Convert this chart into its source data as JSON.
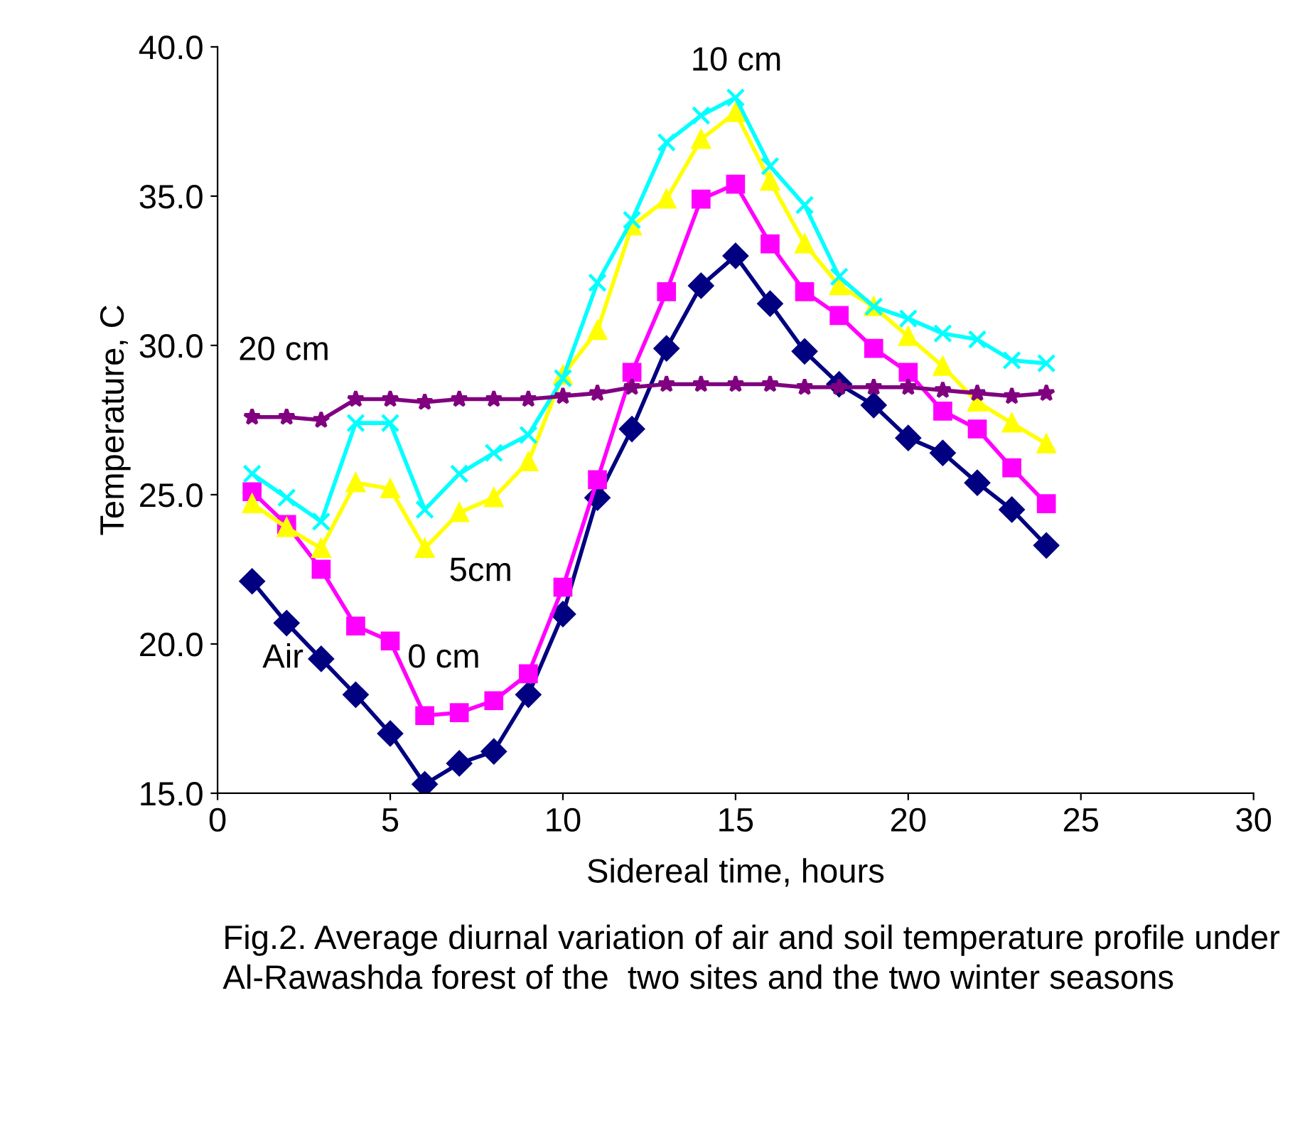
{
  "chart_data": {
    "type": "line",
    "xlabel": "Sidereal time, hours",
    "ylabel": "Temperature, C",
    "x": [
      1,
      2,
      3,
      4,
      5,
      6,
      7,
      8,
      9,
      10,
      11,
      12,
      13,
      14,
      15,
      16,
      17,
      18,
      19,
      20,
      21,
      22,
      23,
      24
    ],
    "series": [
      {
        "name": "Air",
        "color": "#000080",
        "marker": "diamond",
        "values": [
          22.1,
          20.7,
          19.5,
          18.3,
          17.0,
          15.3,
          16.0,
          16.4,
          18.3,
          21.0,
          24.9,
          27.2,
          29.9,
          32.0,
          33.0,
          31.4,
          29.8,
          28.7,
          28.0,
          26.9,
          26.4,
          25.4,
          24.5,
          23.3
        ]
      },
      {
        "name": "0 cm",
        "color": "#ff00ff",
        "marker": "square",
        "values": [
          25.1,
          24.0,
          22.5,
          20.6,
          20.1,
          17.6,
          17.7,
          18.1,
          19.0,
          21.9,
          25.5,
          29.1,
          31.8,
          34.9,
          35.4,
          33.4,
          31.8,
          31.0,
          29.9,
          29.1,
          27.8,
          27.2,
          25.9,
          24.7
        ]
      },
      {
        "name": "5cm",
        "color": "#ffff00",
        "marker": "triangle",
        "values": [
          24.7,
          23.9,
          23.2,
          25.4,
          25.2,
          23.2,
          24.4,
          24.9,
          26.1,
          29.0,
          30.5,
          34.0,
          34.9,
          36.9,
          37.8,
          35.5,
          33.4,
          32.0,
          31.3,
          30.3,
          29.3,
          28.1,
          27.4,
          26.7
        ]
      },
      {
        "name": "10 cm",
        "color": "#00ffff",
        "marker": "cross",
        "values": [
          25.7,
          24.9,
          24.1,
          27.4,
          27.4,
          24.5,
          25.7,
          26.4,
          27.0,
          28.9,
          32.1,
          34.2,
          36.8,
          37.7,
          38.3,
          36.0,
          34.7,
          32.3,
          31.3,
          30.9,
          30.4,
          30.2,
          29.5,
          29.4
        ]
      },
      {
        "name": "20 cm",
        "color": "#800080",
        "marker": "star",
        "values": [
          27.6,
          27.6,
          27.5,
          28.2,
          28.2,
          28.1,
          28.2,
          28.2,
          28.2,
          28.3,
          28.4,
          28.6,
          28.7,
          28.7,
          28.7,
          28.7,
          28.6,
          28.6,
          28.6,
          28.6,
          28.5,
          28.4,
          28.3,
          28.4
        ]
      }
    ],
    "xlim": [
      0,
      30
    ],
    "xticks": [
      0,
      5,
      10,
      15,
      20,
      25,
      30
    ],
    "ylim": [
      15,
      40
    ],
    "yticks": [
      {
        "value": 15,
        "label": "15.0"
      },
      {
        "value": 20,
        "label": "20.0"
      },
      {
        "value": 25,
        "label": "25.0"
      },
      {
        "value": 30,
        "label": "30.0"
      },
      {
        "value": 35,
        "label": "35.0"
      },
      {
        "value": 40,
        "label": "40.0"
      }
    ],
    "grid": false,
    "annotations": [
      "Fig.2. Average diurnal variation of air and soil temperature profile under Al-Rawashda forest of the  two sites and the two winter seasons"
    ]
  }
}
